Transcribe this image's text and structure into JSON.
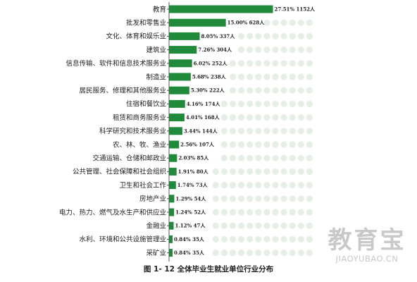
{
  "chart_data": {
    "type": "bar",
    "orientation": "horizontal",
    "title": "图 1- 12  全体毕业生就业单位行业分布",
    "categories": [
      "教育",
      "批发和零售业",
      "文化、体育和娱乐业",
      "建筑业",
      "信息传输、软件和信息技术服务业",
      "制造业",
      "居民服务、修理和其他服务业",
      "住宿和餐饮业",
      "租赁和商务服务业",
      "科学研究和技术服务业",
      "农、林、牧、渔业",
      "交通运输、仓储和邮政业",
      "公共管理、社会保障和社会组织",
      "卫生和社会工作",
      "房地产业",
      "电力、热力、燃气及水生产和供应业",
      "金融业",
      "水利、环境和公共设施管理业",
      "采矿业"
    ],
    "values": [
      27.51,
      15.0,
      8.05,
      7.26,
      6.02,
      5.68,
      5.3,
      4.16,
      4.01,
      3.44,
      2.56,
      2.03,
      1.91,
      1.74,
      1.29,
      1.24,
      1.12,
      0.84,
      0.84
    ],
    "counts": [
      1152,
      628,
      337,
      304,
      252,
      238,
      222,
      174,
      168,
      144,
      107,
      85,
      80,
      73,
      54,
      52,
      47,
      35,
      35
    ],
    "data_labels": [
      "27.51% 1152人",
      "15.00% 628人",
      "8.05% 337人",
      "7.26% 304人",
      "6.02% 252人",
      "5.68% 238人",
      "5.30% 222人",
      "4.16% 174人",
      "4.01% 168人",
      "3.44% 144人",
      "2.56% 107人",
      "2.03% 85人",
      "1.91% 80人",
      "1.74% 73人",
      "1.29% 54人",
      "1.24% 52人",
      "1.12% 47人",
      "0.84% 35人",
      "0.84% 35人"
    ],
    "xlim": [
      0,
      27.51
    ],
    "grid": false,
    "legend": "none",
    "colors": {
      "bar": "#1e8a3a",
      "background_marker": "#e6efe6"
    }
  },
  "watermark": {
    "logo": "教育宝",
    "url": "JIAOYUBAO.CN"
  }
}
